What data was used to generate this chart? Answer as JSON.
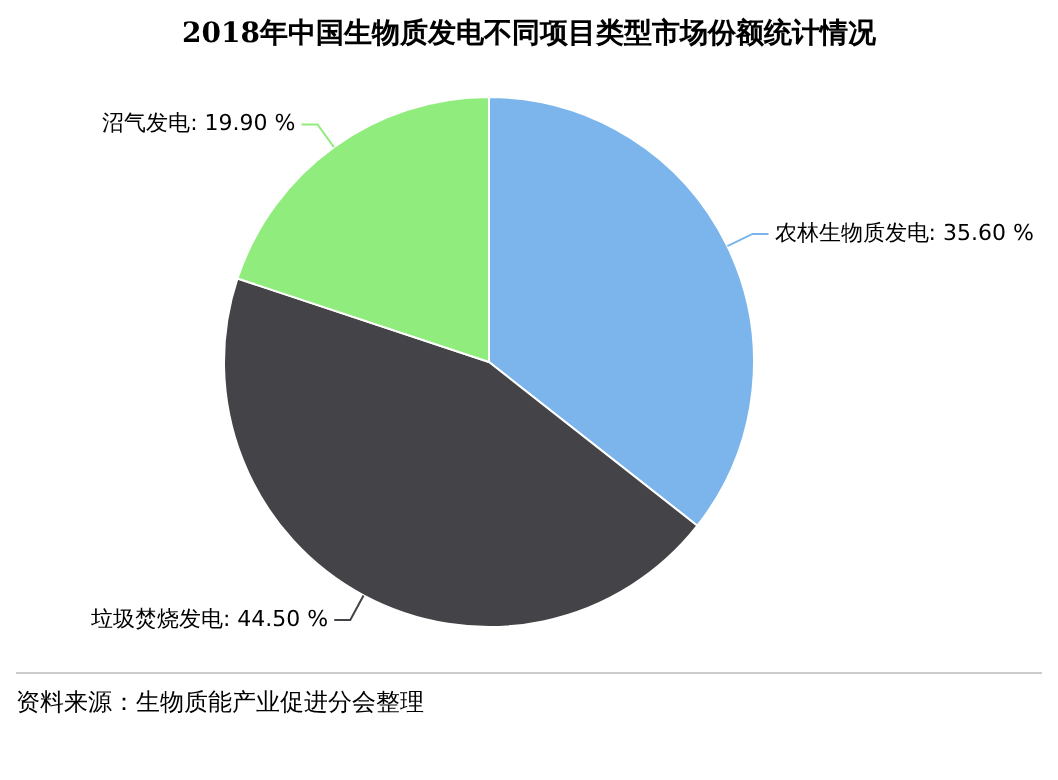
{
  "chart_data": {
    "type": "pie",
    "title": "2018年中国生物质发电不同项目类型市场份额统计情况",
    "categories": [
      "农林生物质发电",
      "垃圾焚烧发电",
      "沼气发电"
    ],
    "values": [
      35.6,
      44.5,
      19.9
    ],
    "value_labels": [
      "35.60 %",
      "44.50 %",
      "19.90 %"
    ],
    "colors": [
      "#7cb5ec",
      "#434348",
      "#90ed7d"
    ],
    "legend": false,
    "annotations": [
      "资料来源：生物质能产业促进分会整理"
    ]
  }
}
